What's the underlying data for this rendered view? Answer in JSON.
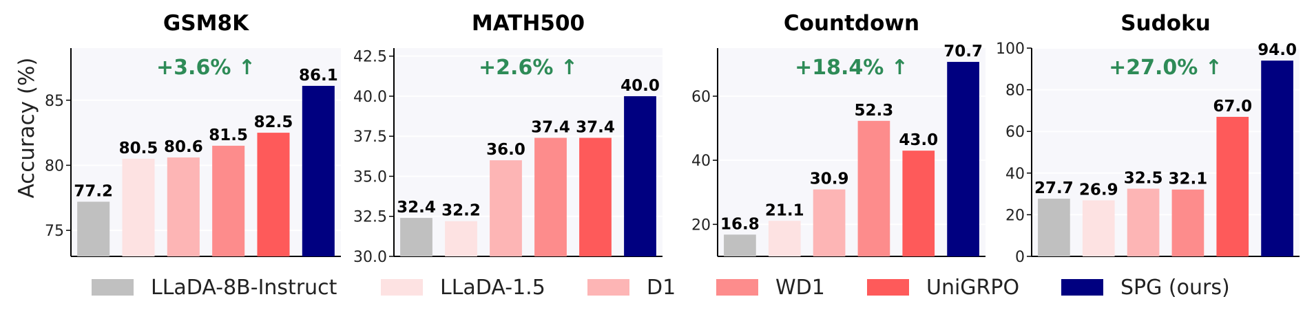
{
  "ylabel": "Accuracy (%)",
  "legend": [
    {
      "name": "LLaDA-8B-Instruct",
      "color": "#c0c0c0"
    },
    {
      "name": "LLaDA-1.5",
      "color": "#fde2e2"
    },
    {
      "name": "D1",
      "color": "#fdb5b5"
    },
    {
      "name": "WD1",
      "color": "#fd8c8c"
    },
    {
      "name": "UniGRPO",
      "color": "#fe5a5a"
    },
    {
      "name": "SPG (ours)",
      "color": "#000080"
    }
  ],
  "chart_data": [
    {
      "type": "bar",
      "title": "GSM8K",
      "categories": [
        "LLaDA-8B-Instruct",
        "LLaDA-1.5",
        "D1",
        "WD1",
        "UniGRPO",
        "SPG (ours)"
      ],
      "values": [
        77.2,
        80.5,
        80.6,
        81.5,
        82.5,
        86.1
      ],
      "value_labels": [
        "77.2",
        "80.5",
        "80.6",
        "81.5",
        "82.5",
        "86.1"
      ],
      "ylim": [
        73,
        89
      ],
      "yticks": [
        75,
        80,
        85
      ],
      "ytick_labels": [
        "75",
        "80",
        "85"
      ],
      "annotation": "+3.6% ↑",
      "grid": true
    },
    {
      "type": "bar",
      "title": "MATH500",
      "categories": [
        "LLaDA-8B-Instruct",
        "LLaDA-1.5",
        "D1",
        "WD1",
        "UniGRPO",
        "SPG (ours)"
      ],
      "values": [
        32.4,
        32.2,
        36.0,
        37.4,
        37.4,
        40.0
      ],
      "value_labels": [
        "32.4",
        "32.2",
        "36.0",
        "37.4",
        "37.4",
        "40.0"
      ],
      "ylim": [
        30,
        43
      ],
      "yticks": [
        30.0,
        32.5,
        35.0,
        37.5,
        40.0,
        42.5
      ],
      "ytick_labels": [
        "30.0",
        "32.5",
        "35.0",
        "37.5",
        "40.0",
        "42.5"
      ],
      "annotation": "+2.6% ↑",
      "grid": true
    },
    {
      "type": "bar",
      "title": "Countdown",
      "categories": [
        "LLaDA-8B-Instruct",
        "LLaDA-1.5",
        "D1",
        "WD1",
        "UniGRPO",
        "SPG (ours)"
      ],
      "values": [
        16.8,
        21.1,
        30.9,
        52.3,
        43.0,
        70.7
      ],
      "value_labels": [
        "16.8",
        "21.1",
        "30.9",
        "52.3",
        "43.0",
        "70.7"
      ],
      "ylim": [
        10,
        75
      ],
      "yticks": [
        20,
        40,
        60
      ],
      "ytick_labels": [
        "20",
        "40",
        "60"
      ],
      "annotation": "+18.4% ↑",
      "grid": true
    },
    {
      "type": "bar",
      "title": "Sudoku",
      "categories": [
        "LLaDA-8B-Instruct",
        "LLaDA-1.5",
        "D1",
        "WD1",
        "UniGRPO",
        "SPG (ours)"
      ],
      "values": [
        27.7,
        26.9,
        32.5,
        32.1,
        67.0,
        94.0
      ],
      "value_labels": [
        "27.7",
        "26.9",
        "32.5",
        "32.1",
        "67.0",
        "94.0"
      ],
      "ylim": [
        0,
        100
      ],
      "yticks": [
        0,
        20,
        40,
        60,
        80,
        100
      ],
      "ytick_labels": [
        "0",
        "20",
        "40",
        "60",
        "80",
        "100"
      ],
      "annotation": "+27.0% ↑",
      "grid": true
    }
  ],
  "colors": {
    "annotation": "#2e8b57",
    "plot_bg": "#f7f7fb",
    "grid": "#ffffff",
    "axis": "#000000",
    "text": "#222222"
  }
}
